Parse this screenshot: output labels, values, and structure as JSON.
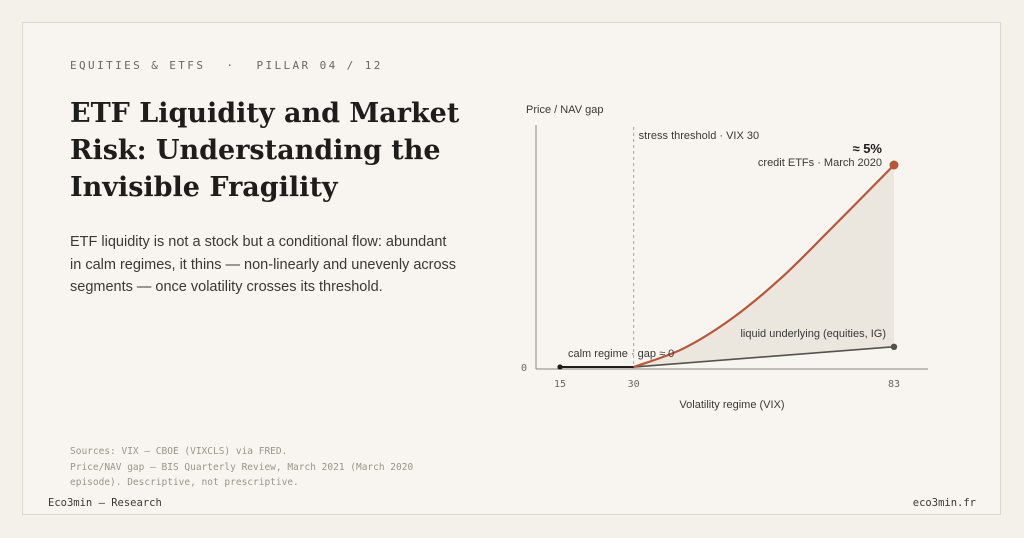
{
  "header": {
    "kicker_section": "EQUITIES & ETFS",
    "kicker_separator": "·",
    "kicker_pillar": "PILLAR 04 / 12",
    "title": "ETF Liquidity and Market Risk: Understanding the Invisible Fragility",
    "lede": "ETF liquidity is not a stock but a conditional flow: abundant in calm regimes, it thins — non-linearly and unevenly across segments — once volatility crosses its threshold."
  },
  "sources": [
    "Sources: VIX — CBOE (VIXCLS) via FRED.",
    "Price/NAV gap — BIS Quarterly Review, March 2021 (March 2020",
    "episode). Descriptive, not prescriptive."
  ],
  "footer": {
    "left": "Eco3min — Research",
    "right": "eco3min.fr"
  },
  "colors": {
    "credit": "#b5573a",
    "liquid": "#56514b",
    "calm": "#1f1d1a",
    "fill": "#ebe6de",
    "axis": "#8a857d"
  },
  "chart_data": {
    "type": "line",
    "xlabel": "Volatility regime (VIX)",
    "ylabel": "Price / NAV gap",
    "x_ticks": [
      "15",
      "30",
      "83"
    ],
    "y_ticks": [
      "0"
    ],
    "xlim": [
      15,
      83
    ],
    "ylim": [
      0,
      5
    ],
    "threshold": {
      "x": 30,
      "label": "stress threshold · VIX 30"
    },
    "series": [
      {
        "name": "calm regime · gap ≈ 0",
        "x": [
          15,
          30
        ],
        "y": [
          0,
          0
        ]
      },
      {
        "name": "liquid underlying (equities, IG)",
        "x": [
          30,
          83
        ],
        "y": [
          0,
          0.5
        ]
      },
      {
        "name": "credit ETFs · March 2020",
        "x": [
          30,
          40,
          50,
          60,
          70,
          83
        ],
        "y": [
          0,
          0.45,
          1.2,
          2.2,
          3.4,
          5.0
        ]
      }
    ],
    "annotation": {
      "value_label": "≈ 5%",
      "label": "credit ETFs · March 2020"
    }
  }
}
